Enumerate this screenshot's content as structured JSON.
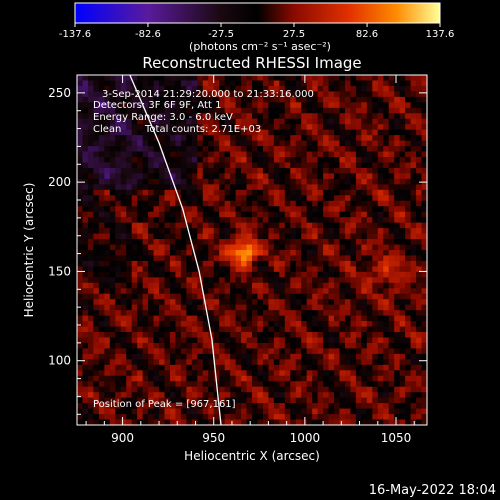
{
  "colorbar": {
    "ticks": [
      "-137.6",
      "-82.6",
      "-27.5",
      "27.5",
      "82.6",
      "137.6"
    ],
    "unit_label": "(photons cm⁻² s⁻¹ asec⁻²)",
    "min": -137.6,
    "max": 137.6
  },
  "chart_data": {
    "type": "heatmap",
    "title": "Reconstructed RHESSI Image",
    "xlabel": "Heliocentric X (arcsec)",
    "ylabel": "Heliocentric Y (arcsec)",
    "xlim": [
      875,
      1067
    ],
    "ylim": [
      64,
      260
    ],
    "xticks": [
      900,
      950,
      1000,
      1050
    ],
    "yticks": [
      100,
      150,
      200,
      250
    ],
    "annotations": {
      "time_range": "3-Sep-2014 21:29:20.000 to 21:33:16.000",
      "detectors": "Detectors: 3F 6F 9F, Att 1",
      "energy": "Energy Range: 3.0 - 6.0 keV",
      "method": "Clean",
      "counts": "Total counts: 2.71E+03",
      "peak": "Position of Peak = [967,161]"
    },
    "peak": {
      "x": 967,
      "y": 161
    },
    "limb_curve": [
      {
        "x": 904,
        "y": 260
      },
      {
        "x": 920,
        "y": 222
      },
      {
        "x": 933,
        "y": 185
      },
      {
        "x": 942,
        "y": 150
      },
      {
        "x": 949,
        "y": 112
      },
      {
        "x": 954,
        "y": 64
      }
    ],
    "colors": {
      "scale": [
        "#0000ff",
        "#5a1a9c",
        "#1a0810",
        "#000000",
        "#8a0a00",
        "#e23000",
        "#ff8a00",
        "#ffff99"
      ]
    }
  },
  "footer": {
    "timestamp": "16-May-2022 18:04"
  }
}
